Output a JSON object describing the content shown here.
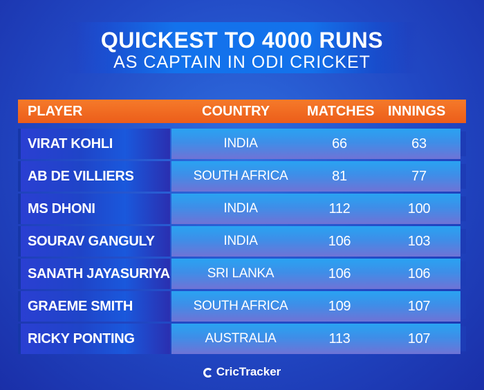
{
  "title": {
    "main": "QUICKEST TO 4000 RUNS",
    "sub": "AS CAPTAIN IN ODI CRICKET"
  },
  "table": {
    "columns": [
      "PLAYER",
      "COUNTRY",
      "MATCHES",
      "INNINGS"
    ],
    "rows": [
      {
        "player": "VIRAT KOHLI",
        "country": "INDIA",
        "matches": "66",
        "innings": "63"
      },
      {
        "player": "AB DE VILLIERS",
        "country": "SOUTH AFRICA",
        "matches": "81",
        "innings": "77"
      },
      {
        "player": "MS DHONI",
        "country": "INDIA",
        "matches": "112",
        "innings": "100"
      },
      {
        "player": "SOURAV GANGULY",
        "country": "INDIA",
        "matches": "106",
        "innings": "103"
      },
      {
        "player": "SANATH JAYASURIYA",
        "country": "SRI LANKA",
        "matches": "106",
        "innings": "106"
      },
      {
        "player": "GRAEME SMITH",
        "country": "SOUTH AFRICA",
        "matches": "109",
        "innings": "107"
      },
      {
        "player": "RICKY PONTING",
        "country": "AUSTRALIA",
        "matches": "113",
        "innings": "107"
      }
    ]
  },
  "brand": {
    "logo_text": "CricTracker"
  },
  "colors": {
    "header_orange": "#ec5d1a",
    "background_blue": "#2148c4",
    "row_light_blue": "#29a3f2"
  }
}
